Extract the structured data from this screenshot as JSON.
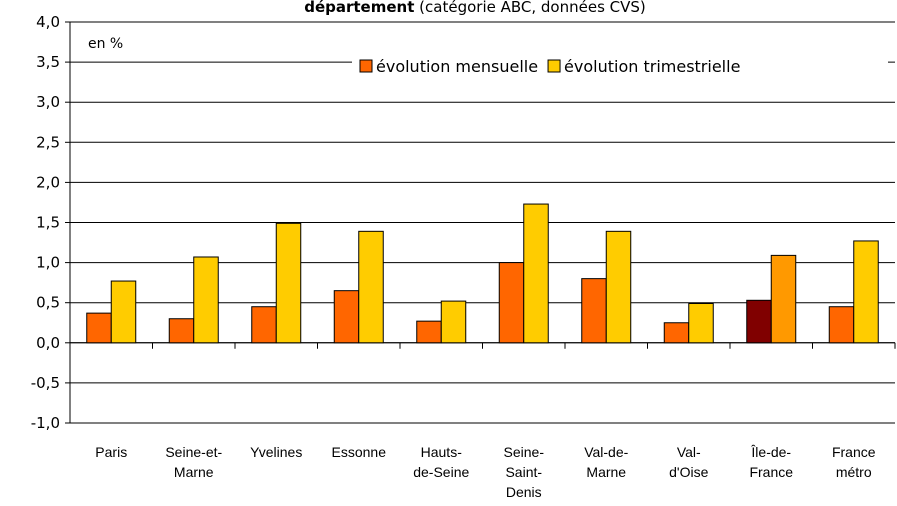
{
  "chart_data": {
    "type": "bar",
    "title_bold": "département",
    "title_rest": "(catégorie ABC, données CVS)",
    "annotation": "en %",
    "categories": [
      [
        "Paris"
      ],
      [
        "Seine-et-",
        "Marne"
      ],
      [
        "Yvelines"
      ],
      [
        "Essonne"
      ],
      [
        "Hauts-",
        "de-Seine"
      ],
      [
        "Seine-",
        "Saint-",
        "Denis"
      ],
      [
        "Val-de-",
        "Marne"
      ],
      [
        "Val-",
        "d'Oise"
      ],
      [
        "Île-de-",
        "France"
      ],
      [
        "France",
        "métro"
      ]
    ],
    "series": [
      {
        "name": "évolution mensuelle",
        "color": "#ff6600",
        "point_colors": [
          "#ff6600",
          "#ff6600",
          "#ff6600",
          "#ff6600",
          "#ff6600",
          "#ff6600",
          "#ff6600",
          "#ff6600",
          "#800000",
          "#ff6600"
        ],
        "values": [
          0.37,
          0.3,
          0.45,
          0.65,
          0.27,
          1.0,
          0.8,
          0.25,
          0.53,
          0.45
        ]
      },
      {
        "name": "évolution trimestrielle",
        "color": "#ffcc00",
        "point_colors": [
          "#ffcc00",
          "#ffcc00",
          "#ffcc00",
          "#ffcc00",
          "#ffcc00",
          "#ffcc00",
          "#ffcc00",
          "#ffcc00",
          "#ff9900",
          "#ffcc00"
        ],
        "values": [
          0.77,
          1.07,
          1.49,
          1.39,
          0.52,
          1.73,
          1.39,
          0.49,
          1.09,
          1.27
        ]
      }
    ],
    "ylim": [
      -1,
      4
    ],
    "yticks": [
      {
        "value": -1,
        "label": "-1,0"
      },
      {
        "value": -0.5,
        "label": "-0,5"
      },
      {
        "value": 0,
        "label": "0,0"
      },
      {
        "value": 0.5,
        "label": "0,5"
      },
      {
        "value": 1,
        "label": "1,0"
      },
      {
        "value": 1.5,
        "label": "1,5"
      },
      {
        "value": 2,
        "label": "2,0"
      },
      {
        "value": 2.5,
        "label": "2,5"
      },
      {
        "value": 3,
        "label": "3,0"
      },
      {
        "value": 3.5,
        "label": "3,5"
      },
      {
        "value": 4,
        "label": "4,0"
      }
    ],
    "grid": true
  }
}
